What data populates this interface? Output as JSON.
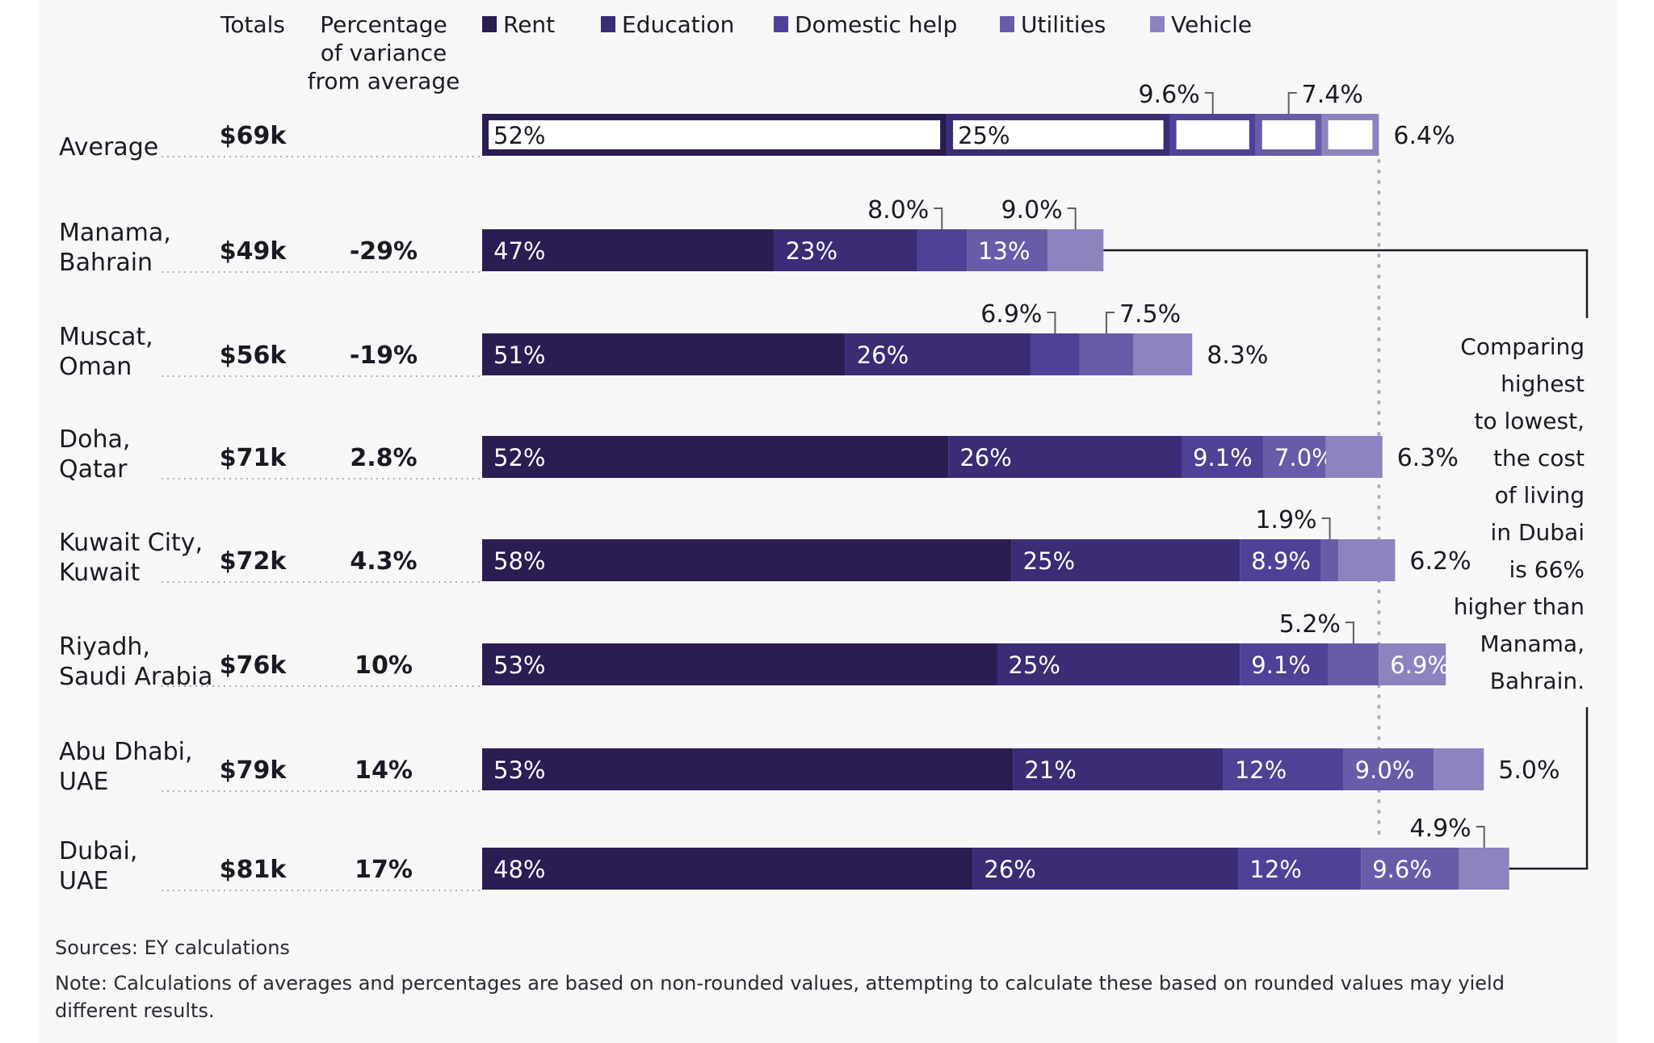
{
  "chart_data": {
    "type": "bar",
    "orientation": "horizontal-stacked",
    "title": "",
    "column_headers": {
      "totals": "Totals",
      "variance": [
        "Percentage",
        "of variance",
        "from average"
      ]
    },
    "legend": [
      {
        "name": "Rent",
        "color": "#2b1c52"
      },
      {
        "name": "Education",
        "color": "#3b2c75"
      },
      {
        "name": "Domestic help",
        "color": "#4f4196"
      },
      {
        "name": "Utilities",
        "color": "#6a5ba8"
      },
      {
        "name": "Vehicle",
        "color": "#8e82bf"
      }
    ],
    "unit": "USD thousands",
    "categories": [
      {
        "city": [
          "Average"
        ],
        "total": 69,
        "total_label": "$69k",
        "variance": "",
        "shares": [
          52,
          25,
          9.6,
          7.4,
          6.4
        ],
        "labels": [
          "52%",
          "25%",
          "9.6%",
          "7.4%",
          "6.4%"
        ],
        "label_pos": [
          "in",
          "in",
          "above-right",
          "above-left",
          "outside"
        ],
        "outline": true
      },
      {
        "city": [
          "Manama,",
          "Bahrain"
        ],
        "total": 49,
        "total_label": "$49k",
        "variance": "-29%",
        "shares": [
          47,
          23,
          8.0,
          13,
          9.0
        ],
        "labels": [
          "47%",
          "23%",
          "8.0%",
          "13%",
          "9.0%"
        ],
        "label_pos": [
          "in",
          "in",
          "above-right",
          "in",
          "above-right"
        ],
        "outline": false
      },
      {
        "city": [
          "Muscat,",
          "Oman"
        ],
        "total": 56,
        "total_label": "$56k",
        "variance": "-19%",
        "shares": [
          51,
          26,
          6.9,
          7.5,
          8.3
        ],
        "labels": [
          "51%",
          "26%",
          "6.9%",
          "7.5%",
          "8.3%"
        ],
        "label_pos": [
          "in",
          "in",
          "above-right",
          "above-left",
          "outside"
        ],
        "outline": false
      },
      {
        "city": [
          "Doha,",
          "Qatar"
        ],
        "total": 71,
        "total_label": "$71k",
        "variance": "2.8%",
        "shares": [
          52,
          26,
          9.1,
          7.0,
          6.3
        ],
        "labels": [
          "52%",
          "26%",
          "9.1%",
          "7.0%",
          "6.3%"
        ],
        "label_pos": [
          "in",
          "in",
          "in",
          "in",
          "outside"
        ],
        "outline": false
      },
      {
        "city": [
          "Kuwait City,",
          "Kuwait"
        ],
        "total": 72,
        "total_label": "$72k",
        "variance": "4.3%",
        "shares": [
          58,
          25,
          8.9,
          1.9,
          6.2
        ],
        "labels": [
          "58%",
          "25%",
          "8.9%",
          "1.9%",
          "6.2%"
        ],
        "label_pos": [
          "in",
          "in",
          "in",
          "above-right",
          "outside"
        ],
        "outline": false
      },
      {
        "city": [
          "Riyadh,",
          "Saudi Arabia"
        ],
        "total": 76,
        "total_label": "$76k",
        "variance": "10%",
        "shares": [
          53,
          25,
          9.1,
          5.2,
          6.9
        ],
        "labels": [
          "53%",
          "25%",
          "9.1%",
          "5.2%",
          "6.9%"
        ],
        "label_pos": [
          "in",
          "in",
          "in",
          "above-right",
          "in"
        ],
        "outline": false
      },
      {
        "city": [
          "Abu Dhabi,",
          "UAE"
        ],
        "total": 79,
        "total_label": "$79k",
        "variance": "14%",
        "shares": [
          53,
          21,
          12,
          9.0,
          5.0
        ],
        "labels": [
          "53%",
          "21%",
          "12%",
          "9.0%",
          "5.0%"
        ],
        "label_pos": [
          "in",
          "in",
          "in",
          "in",
          "outside"
        ],
        "outline": false
      },
      {
        "city": [
          "Dubai,",
          "UAE"
        ],
        "total": 81,
        "total_label": "$81k",
        "variance": "17%",
        "shares": [
          48,
          26,
          12,
          9.6,
          4.9
        ],
        "labels": [
          "48%",
          "26%",
          "12%",
          "9.6%",
          "4.9%"
        ],
        "label_pos": [
          "in",
          "in",
          "in",
          "in",
          "above-right"
        ],
        "outline": false
      }
    ],
    "annotation": [
      "Comparing",
      "highest",
      "to lowest,",
      "the cost",
      "of living",
      "in Dubai",
      "is 66%",
      "higher than",
      "Manama,",
      "Bahrain."
    ],
    "reference_line": "average total",
    "grid": false
  },
  "footer": {
    "sources": "Sources: EY calculations",
    "note_lines": [
      "Note: Calculations of averages and percentages are based on non-rounded values, attempting to calculate these based on rounded values may yield",
      "different results."
    ]
  }
}
